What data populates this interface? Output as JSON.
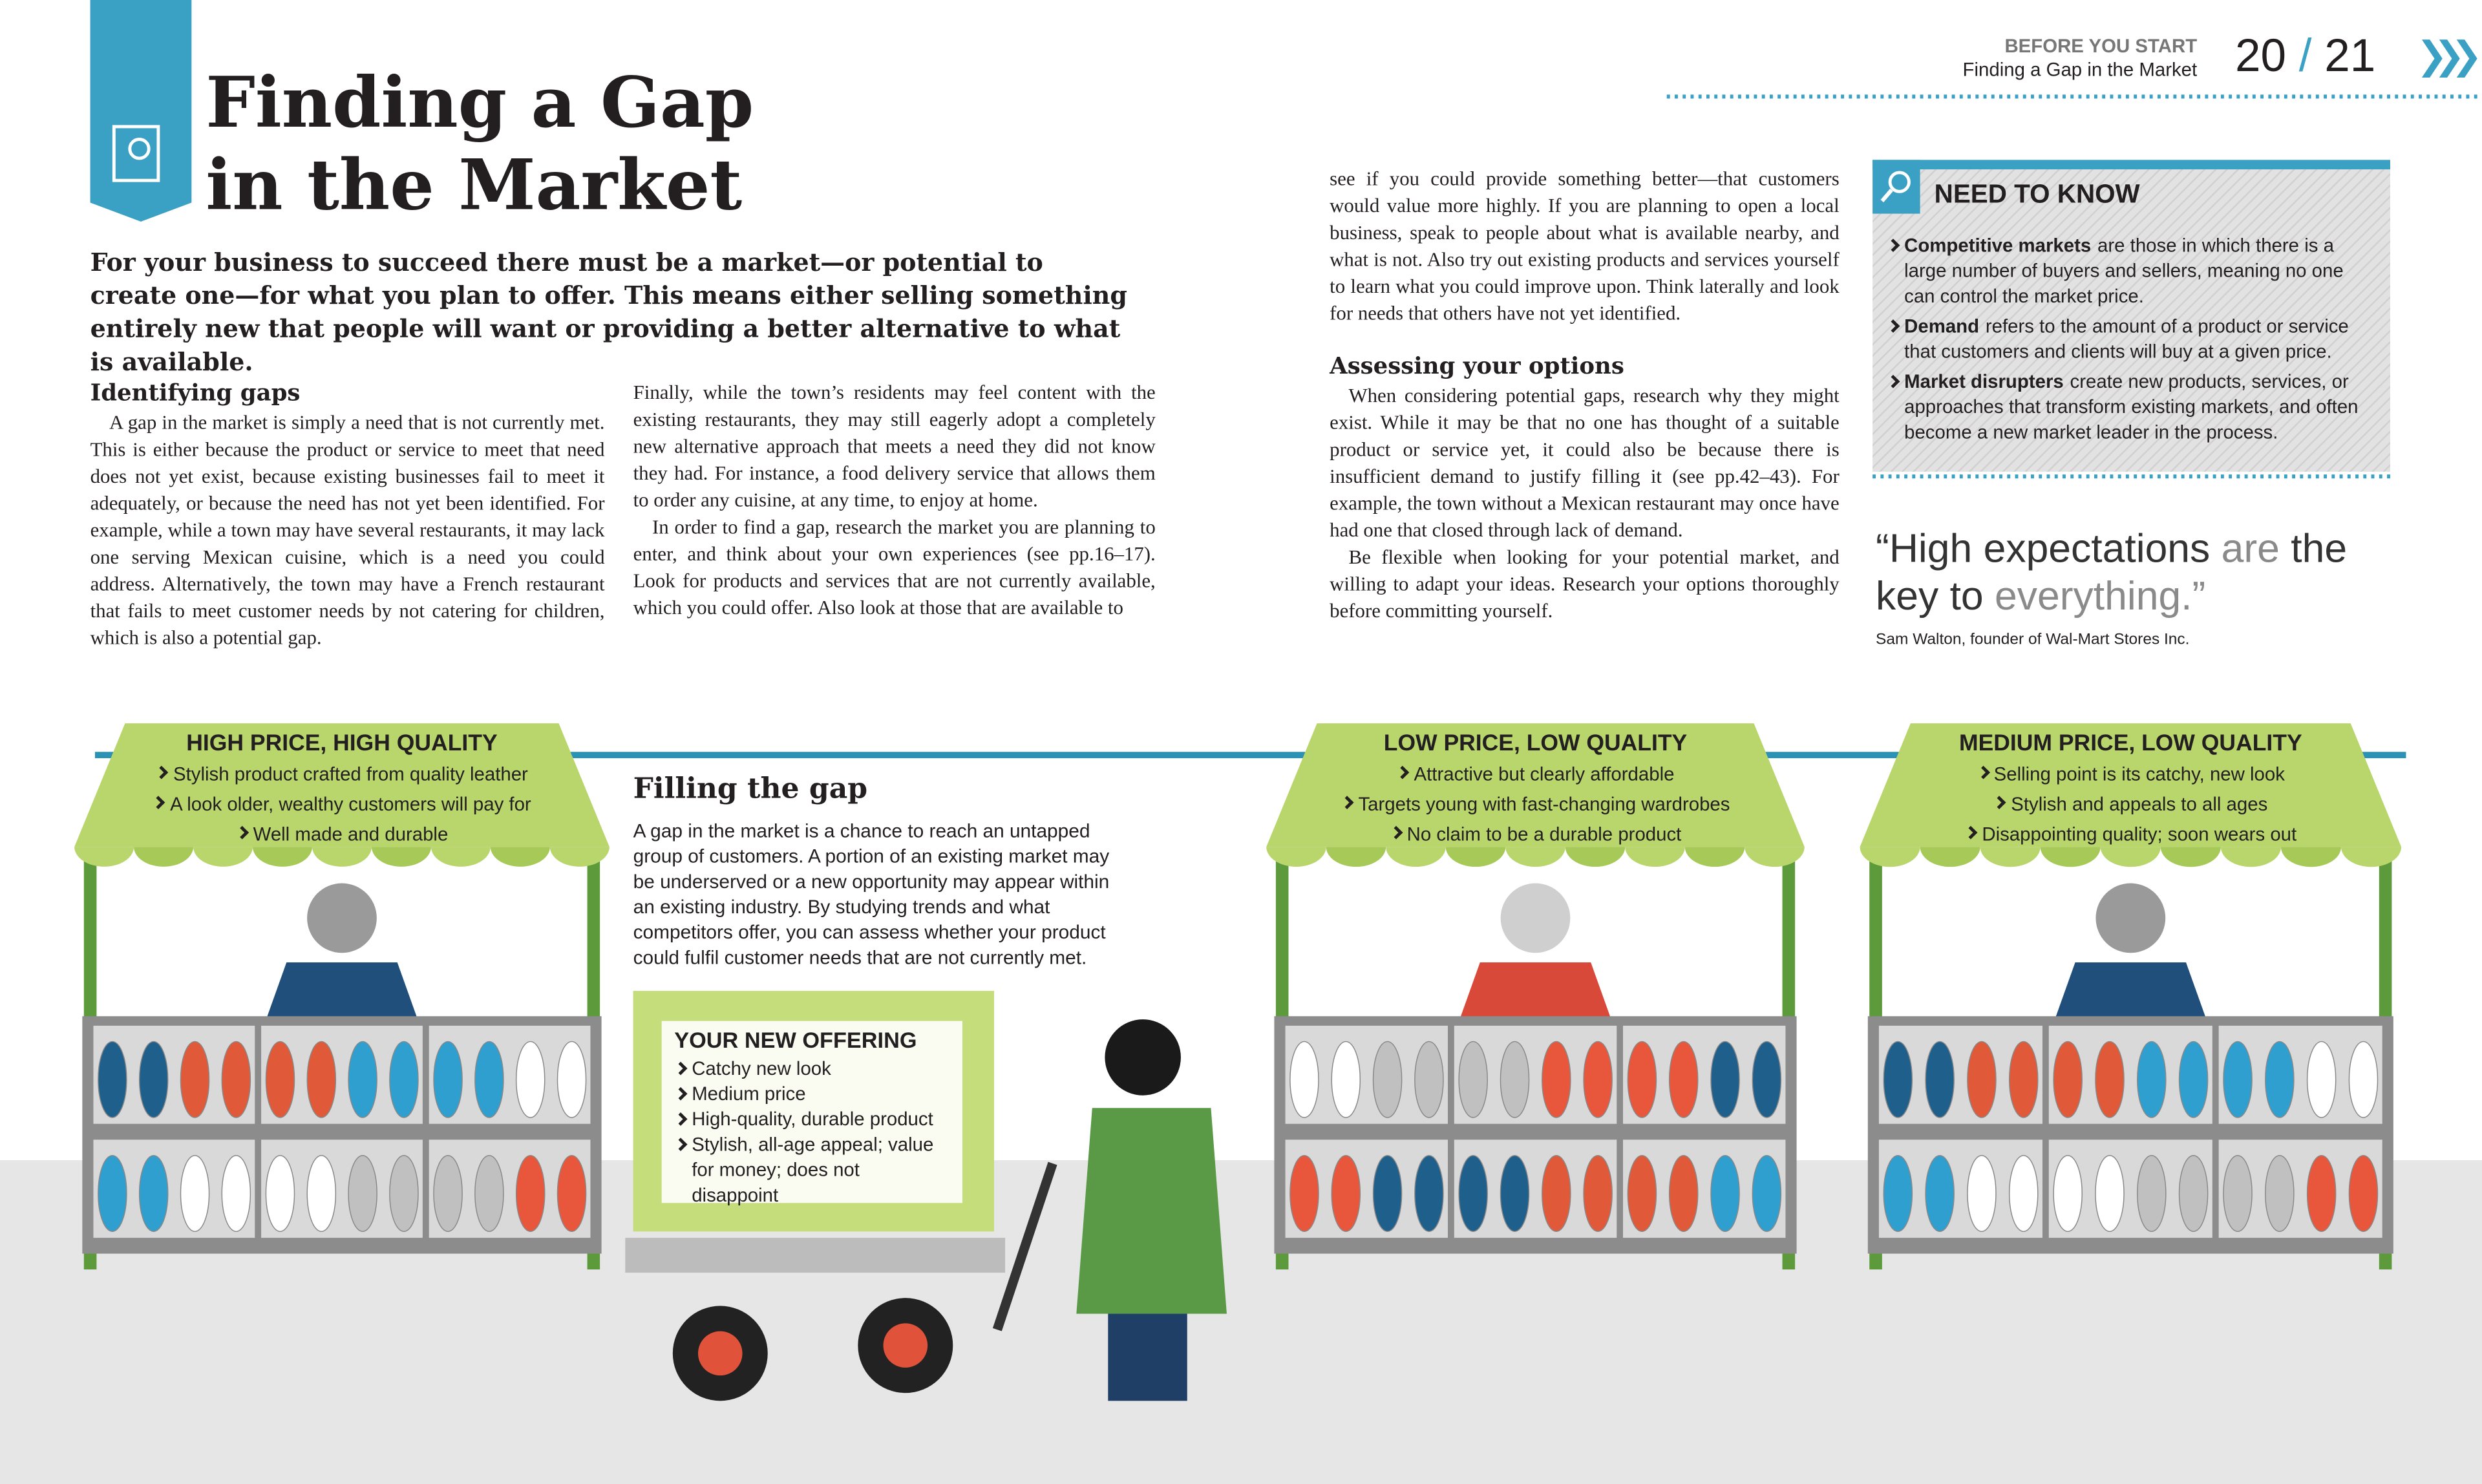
{
  "header": {
    "section": "BEFORE YOU START",
    "subtitle": "Finding a Gap in the Market",
    "page_left": "20",
    "separator": "/",
    "page_right": "21"
  },
  "title_lines": [
    "Finding a Gap",
    "in the Market"
  ],
  "intro": "For your business to succeed there must be a market—or potential to create one—for what you plan to offer. This means either selling something entirely new that people will want or providing a better alternative to what is available.",
  "identifying": {
    "heading": "Identifying gaps",
    "paragraphs": [
      "A gap in the market is simply a need that is not currently met. This is either because the product or service to meet that need does not yet exist, because existing businesses fail to meet it adequately, or because the need has not yet been identified. For example, while a town may have several restaurants, it may lack one serving Mexican cuisine, which is a need you could address. Alternatively, the town may have a French restaurant that fails to meet customer needs by not catering for children, which is also a potential gap.",
      "Finally, while the town’s residents may feel content with the existing restaurants, they may still eagerly adopt a completely new alternative approach that meets a need they did not know they had. For instance, a food delivery service that allows them to order any cuisine, at any time, to enjoy at home.",
      "In order to find a gap, research the market you are planning to enter, and think about your own experiences (see pp.16–17). Look for products and services that are not currently available, which you could offer. Also look at those that are available to",
      "see if you could provide something better—that customers would value more highly. If you are planning to open a local business, speak to people about what is available nearby, and what is not. Also try out existing products and services yourself to learn what you could improve upon. Think laterally and look for needs that others have not yet identified."
    ]
  },
  "assessing": {
    "heading": "Assessing your options",
    "paragraphs": [
      "When considering potential gaps, research why they might exist. While it may be that no one has thought of a suitable product or service yet, it could also be because there is insufficient demand to justify filling it (see pp.42–43). For example, the town without a Mexican restaurant may once have had one that closed through lack of demand.",
      "Be flexible when looking for your potential market, and willing to adapt your ideas. Research your options thoroughly before committing yourself."
    ]
  },
  "need_to_know": {
    "title": "NEED TO KNOW",
    "items": [
      {
        "term": "Competitive markets",
        "text": "are those in which there is a large number of buyers and sellers, meaning  no one can control the market price."
      },
      {
        "term": "Demand",
        "text": "refers to the amount of a product or service that customers and clients will buy at a given price."
      },
      {
        "term": "Market disrupters",
        "text": "create new products, services, or approaches that transform existing markets, and often become a new market leader in the process."
      }
    ]
  },
  "quote": {
    "parts": [
      "“High expectations",
      "are",
      "the key to",
      "everything.”"
    ],
    "attribution": "Sam Walton, founder of Wal-Mart Stores Inc."
  },
  "filling": {
    "heading": "Filling the gap",
    "text": "A gap in the market is a chance to reach an untapped group of customers. A portion of an existing market may be underserved or a new opportunity may appear within an existing industry. By studying trends and what competitors offer, you can assess whether your product could fulfil customer needs that are not currently met."
  },
  "offering": {
    "title": "YOUR NEW OFFERING",
    "items": [
      "Catchy new look",
      "Medium price",
      "High-quality, durable product",
      "Stylish, all-age appeal; value for money; does not disappoint"
    ]
  },
  "stalls": [
    {
      "title": "HIGH PRICE, HIGH QUALITY",
      "items": [
        "Stylish product crafted from quality leather",
        "A look older, wealthy customers will pay for",
        "Well made and durable"
      ]
    },
    {
      "title": "LOW PRICE, LOW QUALITY",
      "items": [
        "Attractive but clearly affordable",
        "Targets young with fast-changing wardrobes",
        "No claim to be a durable product"
      ]
    },
    {
      "title": "MEDIUM PRICE, LOW QUALITY",
      "items": [
        "Selling point is its catchy, new look",
        "Stylish and appeals to all ages",
        "Disappointing quality; soon wears out"
      ]
    }
  ]
}
